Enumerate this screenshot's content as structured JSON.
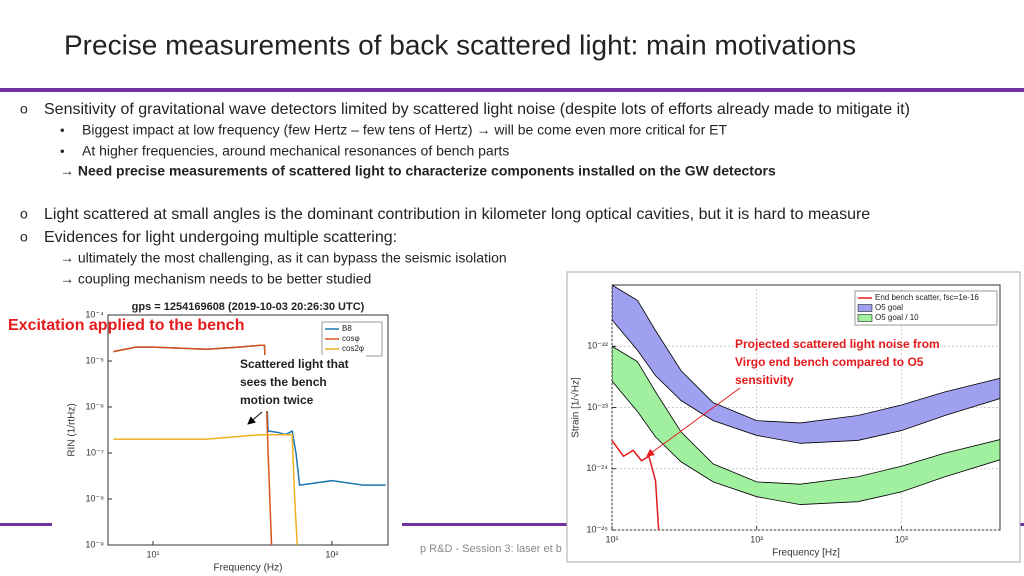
{
  "title": "Precise measurements of back scattered light: main motivations",
  "bullets": [
    {
      "text": "Sensitivity of gravitational wave detectors limited by scattered light noise (despite lots of efforts already made to mitigate it)",
      "sub": [
        "Biggest impact at low frequency (few Hertz – few tens of Hertz) → will be come even more critical for ET",
        "At higher frequencies, around mechanical resonances of bench parts"
      ],
      "conclusion": "→ Need precise measurements of scattered light to characterize components installed on the GW detectors"
    },
    {
      "text": "Light scattered at small angles is the dominant contribution in kilometer long optical cavities, but it is hard to measure"
    },
    {
      "text": "Evidences for light undergoing multiple scattering:",
      "notes": [
        "→ ultimately the most challenging, as it can bypass the seismic isolation",
        "→ coupling mechanism needs to be better studied"
      ]
    }
  ],
  "footer": "p R&D - Session 3: laser et b",
  "annotations": {
    "excitation": "Excitation applied to the bench",
    "twice": [
      "Scattered light that",
      "sees the bench",
      "motion twice"
    ],
    "projected": [
      "Projected scattered light noise from",
      "Virgo end bench compared to O5",
      "sensitivity"
    ]
  },
  "chart_data": [
    {
      "type": "line",
      "title": "gps = 1254169608 (2019-10-03 20:26:30 UTC)",
      "x_label": "Frequency (Hz)",
      "y_label": "RIN (1/rtHz)",
      "log_x": true,
      "log_y": true,
      "grid": false,
      "xlim": [
        5.6,
        206
      ],
      "ylim": [
        1e-09,
        0.0001
      ],
      "xticks": [
        {
          "value": 10,
          "label": "10¹"
        },
        {
          "value": 100,
          "label": "10²"
        }
      ],
      "yticks": [
        {
          "value": 1e-09,
          "label": "10⁻⁹"
        },
        {
          "value": 1e-08,
          "label": "10⁻⁸"
        },
        {
          "value": 1e-07,
          "label": "10⁻⁷"
        },
        {
          "value": 1e-06,
          "label": "10⁻⁶"
        },
        {
          "value": 1e-05,
          "label": "10⁻⁵"
        },
        {
          "value": 0.0001,
          "label": "10⁻⁴"
        }
      ],
      "legend": "top-right",
      "series": [
        {
          "name": "B8",
          "color": "#1f77b4",
          "x": [
            6,
            8,
            10,
            20,
            30,
            40,
            42,
            44,
            50,
            55,
            60,
            63,
            66,
            100,
            150,
            200
          ],
          "values": [
            1.6e-05,
            2e-05,
            2e-05,
            1.8e-05,
            2e-05,
            2.2e-05,
            2.2e-05,
            3e-07,
            2.8e-07,
            2.5e-07,
            3e-07,
            1e-07,
            2e-08,
            2.5e-08,
            2e-08,
            2e-08
          ]
        },
        {
          "name": "cosφ",
          "color": "#d95319",
          "x": [
            6,
            8,
            10,
            20,
            30,
            40,
            42,
            44,
            46
          ],
          "values": [
            1.6e-05,
            2e-05,
            2e-05,
            1.8e-05,
            2e-05,
            2.2e-05,
            2.2e-05,
            1e-07,
            1e-09
          ]
        },
        {
          "name": "cos2φ",
          "color": "#edb120",
          "x": [
            6,
            10,
            20,
            40,
            50,
            60,
            62,
            64
          ],
          "values": [
            2e-07,
            2e-07,
            2e-07,
            2.5e-07,
            2.5e-07,
            2.5e-07,
            1e-08,
            1e-09
          ]
        }
      ]
    },
    {
      "type": "line",
      "x_label": "Frequency [Hz]",
      "y_label": "Strain [1/√Hz]",
      "log_x": true,
      "log_y": true,
      "grid": true,
      "xlim": [
        10,
        4800
      ],
      "ylim": [
        1e-25,
        1e-21
      ],
      "xticks": [
        {
          "value": 10,
          "label": "10¹"
        },
        {
          "value": 100,
          "label": "10²"
        },
        {
          "value": 1000,
          "label": "10³"
        }
      ],
      "yticks": [
        {
          "value": 1e-25,
          "label": "10⁻²⁵"
        },
        {
          "value": 1e-24,
          "label": "10⁻²⁴"
        },
        {
          "value": 1e-23,
          "label": "10⁻²³"
        },
        {
          "value": 1e-22,
          "label": "10⁻²²"
        }
      ],
      "legend": "top-right",
      "series": [
        {
          "name": "End bench scatter, fsc=1e-16",
          "color": "#e41a1c",
          "x": [
            10,
            12,
            14,
            16,
            18,
            20,
            21
          ],
          "values": [
            2.9e-24,
            1.6e-24,
            2e-24,
            1.35e-24,
            1.6e-24,
            6.3e-25,
            1e-25
          ]
        },
        {
          "name": "O5 goal",
          "color": "#a0a0f0",
          "x": [
            10,
            15,
            20,
            30,
            50,
            100,
            200,
            500,
            1000,
            2000,
            4800
          ],
          "values": [
            1e-21,
            5.6e-22,
            1.8e-22,
            4e-23,
            1.2e-23,
            6.1e-24,
            5.6e-24,
            7.4e-24,
            1.1e-23,
            1.8e-23,
            3e-23
          ],
          "lower": [
            2.7e-22,
            8.6e-23,
            3.3e-23,
            1.3e-23,
            6.1e-24,
            3.5e-24,
            2.6e-24,
            2.9e-24,
            4.2e-24,
            7.4e-24,
            1.4e-23
          ]
        },
        {
          "name": "O5 goal / 10",
          "color": "#a0f0a0",
          "x": [
            10,
            15,
            20,
            30,
            50,
            100,
            200,
            500,
            1000,
            2000,
            4800
          ],
          "values": [
            1e-22,
            5.6e-23,
            1.8e-23,
            4e-24,
            1.2e-24,
            6.1e-25,
            5.6e-25,
            7.4e-25,
            1.1e-24,
            1.8e-24,
            3e-24
          ],
          "lower": [
            2.7e-23,
            8.6e-24,
            3.3e-24,
            1.3e-24,
            6.1e-25,
            3.5e-25,
            2.6e-25,
            2.9e-25,
            4.2e-25,
            7.4e-25,
            1.4e-24
          ]
        }
      ]
    }
  ]
}
